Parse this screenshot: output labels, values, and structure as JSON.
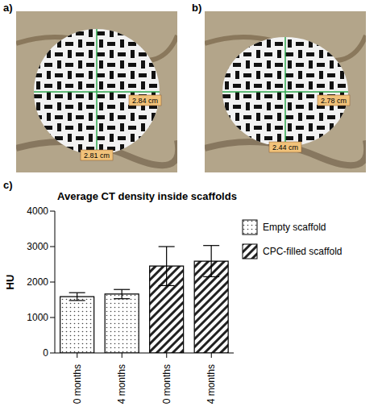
{
  "panels": [
    {
      "label": "a)",
      "measurements": [
        "2.84 cm",
        "2.81 cm"
      ]
    },
    {
      "label": "b)",
      "measurements": [
        "2.78 cm",
        "2.44 cm"
      ]
    }
  ],
  "chart_data": {
    "type": "bar",
    "label": "c)",
    "title": "Average CT density inside scaffolds",
    "y_label": "HU",
    "categories": [
      "0 months",
      "4 months",
      "0 months",
      "4 months"
    ],
    "series": [
      {
        "name": "Empty scaffold",
        "color": "#ffffff",
        "values": [
          1590,
          1660,
          null,
          null
        ],
        "errors": [
          110,
          130,
          null,
          null
        ]
      },
      {
        "name": "CPC-filled scaffold",
        "color": "#ffffff",
        "values": [
          null,
          null,
          2450,
          2590
        ],
        "errors": [
          null,
          null,
          550,
          440
        ]
      }
    ],
    "ylim": [
      0,
      4000
    ],
    "yticks": [
      0,
      1000,
      2000,
      3000,
      4000
    ],
    "legend": "right",
    "grid": false
  }
}
